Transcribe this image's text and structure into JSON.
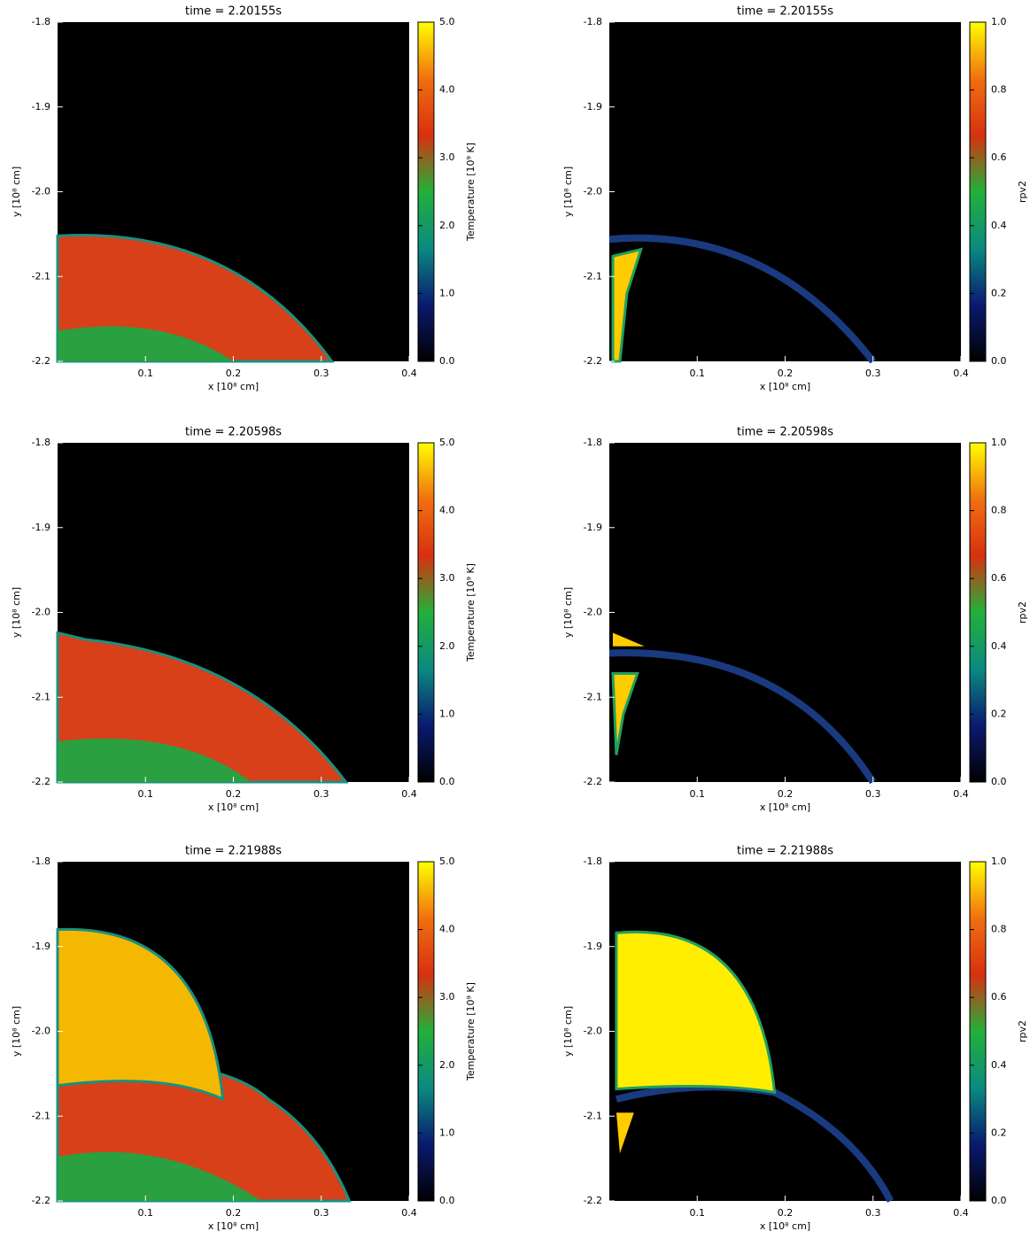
{
  "chart_data": [
    {
      "type": "heatmap",
      "title": "time = 2.20155s",
      "xlabel": "x [10⁸ cm]",
      "ylabel": "y [10⁸ cm]",
      "colorbar_label": "Temperature [10⁹ K]",
      "xlim": [
        0,
        0.4
      ],
      "ylim": [
        -2.2,
        -1.8
      ],
      "xticks": [
        0.1,
        0.2,
        0.3,
        0.4
      ],
      "yticks": [
        -1.8,
        -1.9,
        {
          "value": -2,
          "label": "-2.0"
        },
        -2.1,
        -2.2
      ],
      "clim": [
        0,
        5
      ],
      "cticks": [
        {
          "value": 0,
          "label": "0.0"
        },
        {
          "value": 1,
          "label": "1.0"
        },
        {
          "value": 2,
          "label": "2.0"
        },
        {
          "value": 3,
          "label": "3.0"
        },
        {
          "value": 4,
          "label": "4.0"
        },
        {
          "value": 5,
          "label": "5.0"
        }
      ],
      "colormap": [
        "#000000",
        "#0a1a70",
        "#0a8a80",
        "#22b03a",
        "#d83010",
        "#f07010",
        "#ffff00"
      ]
    },
    {
      "type": "heatmap",
      "title": "time = 2.20155s",
      "xlabel": "x [10⁸ cm]",
      "ylabel": "y [10⁸ cm]",
      "colorbar_label": "rpv2",
      "xlim": [
        0,
        0.4
      ],
      "ylim": [
        -2.2,
        -1.8
      ],
      "xticks": [
        0.1,
        0.2,
        0.3,
        0.4
      ],
      "yticks": [
        -1.8,
        -1.9,
        {
          "value": -2,
          "label": "-2.0"
        },
        -2.1,
        -2.2
      ],
      "clim": [
        0,
        1
      ],
      "cticks": [
        {
          "value": 0,
          "label": "0.0"
        },
        0.2,
        0.4,
        0.6,
        0.8,
        {
          "value": 1,
          "label": "1.0"
        }
      ],
      "colormap": [
        "#000000",
        "#0a1a70",
        "#0a8a80",
        "#22b03a",
        "#d83010",
        "#f07010",
        "#ffff00"
      ]
    },
    {
      "type": "heatmap",
      "title": "time = 2.20598s",
      "xlabel": "x [10⁸ cm]",
      "ylabel": "y [10⁸ cm]",
      "colorbar_label": "Temperature [10⁹ K]",
      "xlim": [
        0,
        0.4
      ],
      "ylim": [
        -2.2,
        -1.8
      ],
      "xticks": [
        0.1,
        0.2,
        0.3,
        0.4
      ],
      "yticks": [
        -1.8,
        -1.9,
        {
          "value": -2,
          "label": "-2.0"
        },
        -2.1,
        -2.2
      ],
      "clim": [
        0,
        5
      ],
      "cticks": [
        {
          "value": 0,
          "label": "0.0"
        },
        {
          "value": 1,
          "label": "1.0"
        },
        {
          "value": 2,
          "label": "2.0"
        },
        {
          "value": 3,
          "label": "3.0"
        },
        {
          "value": 4,
          "label": "4.0"
        },
        {
          "value": 5,
          "label": "5.0"
        }
      ],
      "colormap": [
        "#000000",
        "#0a1a70",
        "#0a8a80",
        "#22b03a",
        "#d83010",
        "#f07010",
        "#ffff00"
      ]
    },
    {
      "type": "heatmap",
      "title": "time = 2.20598s",
      "xlabel": "x [10⁸ cm]",
      "ylabel": "y [10⁸ cm]",
      "colorbar_label": "rpv2",
      "xlim": [
        0,
        0.4
      ],
      "ylim": [
        -2.2,
        -1.8
      ],
      "xticks": [
        0.1,
        0.2,
        0.3,
        0.4
      ],
      "yticks": [
        -1.8,
        -1.9,
        {
          "value": -2,
          "label": "-2.0"
        },
        -2.1,
        -2.2
      ],
      "clim": [
        0,
        1
      ],
      "cticks": [
        {
          "value": 0,
          "label": "0.0"
        },
        0.2,
        0.4,
        0.6,
        0.8,
        {
          "value": 1,
          "label": "1.0"
        }
      ],
      "colormap": [
        "#000000",
        "#0a1a70",
        "#0a8a80",
        "#22b03a",
        "#d83010",
        "#f07010",
        "#ffff00"
      ]
    },
    {
      "type": "heatmap",
      "title": "time = 2.21988s",
      "xlabel": "x [10⁸ cm]",
      "ylabel": "y [10⁸ cm]",
      "colorbar_label": "Temperature [10⁹ K]",
      "xlim": [
        0,
        0.4
      ],
      "ylim": [
        -2.2,
        -1.8
      ],
      "xticks": [
        0.1,
        0.2,
        0.3,
        0.4
      ],
      "yticks": [
        -1.8,
        -1.9,
        {
          "value": -2,
          "label": "-2.0"
        },
        -2.1,
        -2.2
      ],
      "clim": [
        0,
        5
      ],
      "cticks": [
        {
          "value": 0,
          "label": "0.0"
        },
        {
          "value": 1,
          "label": "1.0"
        },
        {
          "value": 2,
          "label": "2.0"
        },
        {
          "value": 3,
          "label": "3.0"
        },
        {
          "value": 4,
          "label": "4.0"
        },
        {
          "value": 5,
          "label": "5.0"
        }
      ],
      "colormap": [
        "#000000",
        "#0a1a70",
        "#0a8a80",
        "#22b03a",
        "#d83010",
        "#f07010",
        "#ffff00"
      ]
    },
    {
      "type": "heatmap",
      "title": "time = 2.21988s",
      "xlabel": "x [10⁸ cm]",
      "ylabel": "y [10⁸ cm]",
      "colorbar_label": "rpv2",
      "xlim": [
        0,
        0.4
      ],
      "ylim": [
        -2.2,
        -1.8
      ],
      "xticks": [
        0.1,
        0.2,
        0.3,
        0.4
      ],
      "yticks": [
        -1.8,
        -1.9,
        {
          "value": -2,
          "label": "-2.0"
        },
        -2.1,
        -2.2
      ],
      "clim": [
        0,
        1
      ],
      "cticks": [
        {
          "value": 0,
          "label": "0.0"
        },
        0.2,
        0.4,
        0.6,
        0.8,
        {
          "value": 1,
          "label": "1.0"
        }
      ],
      "colormap": [
        "#000000",
        "#0a1a70",
        "#0a8a80",
        "#22b03a",
        "#d83010",
        "#f07010",
        "#ffff00"
      ]
    }
  ]
}
